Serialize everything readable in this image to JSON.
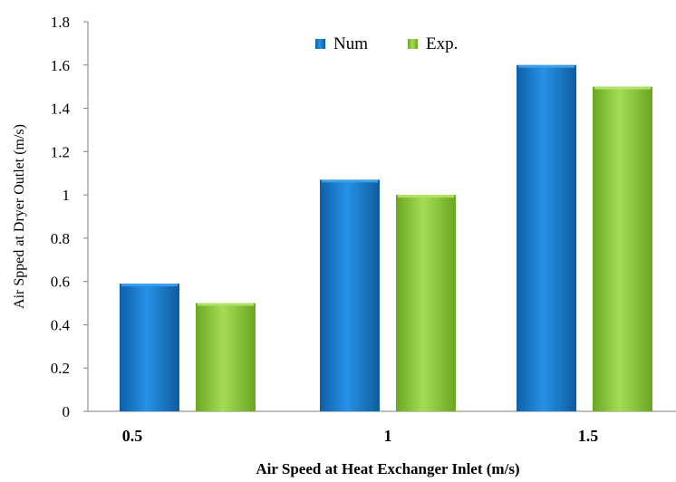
{
  "chart_data": {
    "type": "bar",
    "categories": [
      "0.5",
      "1",
      "1.5"
    ],
    "series": [
      {
        "name": "Num",
        "values": [
          0.59,
          1.07,
          1.6
        ],
        "color": "#1b7fd0"
      },
      {
        "name": "Exp.",
        "values": [
          0.5,
          1.0,
          1.5
        ],
        "color": "#8fcf3d"
      }
    ],
    "xlabel": "Air Speed at Heat Exchanger Inlet (m/s)",
    "ylabel": "Air Spped at Dryer Outlet (m/s)",
    "ylim": [
      0,
      1.8
    ],
    "yticks": [
      "0",
      "0.2",
      "0.4",
      "0.6",
      "0.8",
      "1",
      "1.2",
      "1.4",
      "1.6",
      "1.8"
    ],
    "grid": false,
    "legend_position": "top-center"
  }
}
